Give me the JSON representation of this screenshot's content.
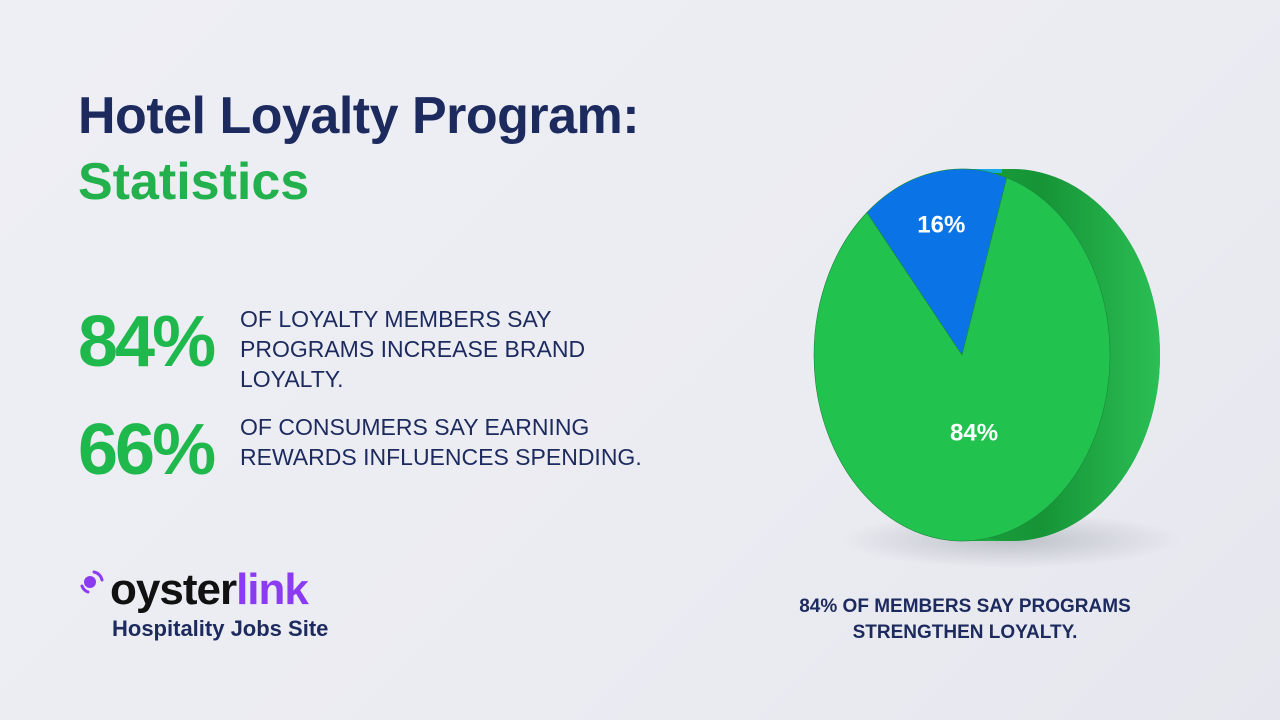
{
  "header": {
    "title_line1": "Hotel Loyalty Program:",
    "title_line2": "Statistics"
  },
  "stats": [
    {
      "value": "84%",
      "text": "OF LOYALTY MEMBERS SAY PROGRAMS INCREASE BRAND LOYALTY."
    },
    {
      "value": "66%",
      "text": "OF CONSUMERS SAY EARNING REWARDS INFLUENCES SPENDING."
    }
  ],
  "logo": {
    "word_dark": "oyster",
    "word_accent": "link",
    "tagline": "Hospitality Jobs Site",
    "accent_color": "#8b3cf2"
  },
  "chart_data": {
    "type": "pie",
    "categories": [
      "16%",
      "84%"
    ],
    "values": [
      16,
      84
    ],
    "data_labels": [
      "16%",
      "84%"
    ],
    "colors": [
      "#0a74e6",
      "#22c24f"
    ],
    "caption": "84% OF MEMBERS SAY PROGRAMS STRENGTHEN LOYALTY."
  }
}
